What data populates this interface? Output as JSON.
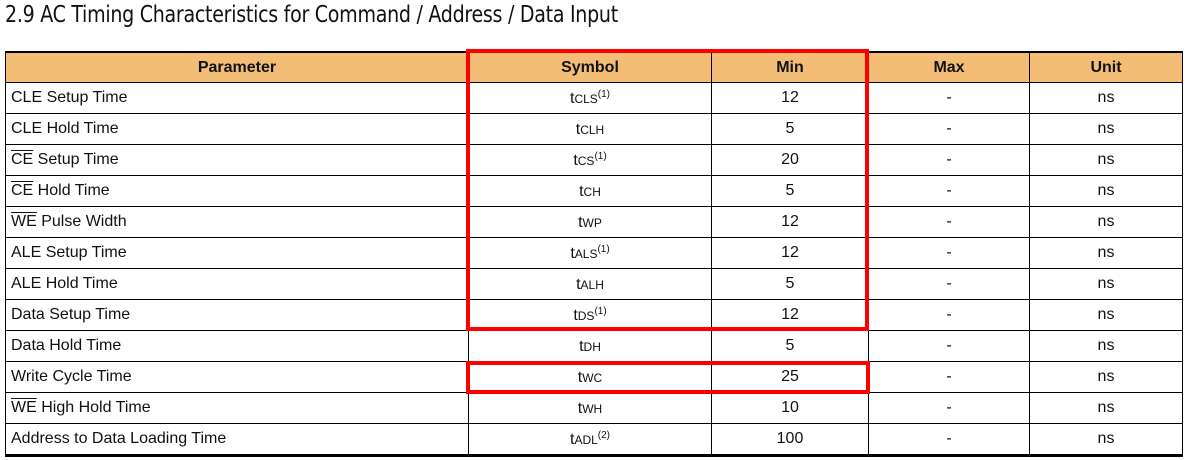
{
  "title": "2.9 AC Timing Characteristics for Command / Address / Data Input",
  "headers": [
    "Parameter",
    "Symbol",
    "Min",
    "Max",
    "Unit"
  ],
  "rows": [
    {
      "ol": "",
      "param": "CLE Setup Time",
      "t": "t",
      "sub": "CLS",
      "sup": "(1)",
      "min": "12",
      "max": "-",
      "unit": "ns"
    },
    {
      "ol": "",
      "param": "CLE Hold Time",
      "t": "t",
      "sub": "CLH",
      "sup": "",
      "min": "5",
      "max": "-",
      "unit": "ns"
    },
    {
      "ol": "CE",
      "param": " Setup Time",
      "t": "t",
      "sub": "CS",
      "sup": "(1)",
      "min": "20",
      "max": "-",
      "unit": "ns"
    },
    {
      "ol": "CE",
      "param": " Hold Time",
      "t": "t",
      "sub": "CH",
      "sup": "",
      "min": "5",
      "max": "-",
      "unit": "ns"
    },
    {
      "ol": "WE",
      "param": " Pulse Width",
      "t": "t",
      "sub": "WP",
      "sup": "",
      "min": "12",
      "max": "-",
      "unit": "ns"
    },
    {
      "ol": "",
      "param": "ALE Setup Time",
      "t": "t",
      "sub": "ALS",
      "sup": "(1)",
      "min": "12",
      "max": "-",
      "unit": "ns"
    },
    {
      "ol": "",
      "param": "ALE Hold Time",
      "t": "t",
      "sub": "ALH",
      "sup": "",
      "min": "5",
      "max": "-",
      "unit": "ns"
    },
    {
      "ol": "",
      "param": "Data Setup Time",
      "t": "t",
      "sub": "DS",
      "sup": "(1)",
      "min": "12",
      "max": "-",
      "unit": "ns"
    },
    {
      "ol": "",
      "param": "Data Hold Time",
      "t": "t",
      "sub": "DH",
      "sup": "",
      "min": "5",
      "max": "-",
      "unit": "ns"
    },
    {
      "ol": "",
      "param": "Write Cycle Time",
      "t": "t",
      "sub": "WC",
      "sup": "",
      "min": "25",
      "max": "-",
      "unit": "ns"
    },
    {
      "ol": "WE",
      "param": " High Hold Time",
      "t": "t",
      "sub": "WH",
      "sup": "",
      "min": "10",
      "max": "-",
      "unit": "ns"
    },
    {
      "ol": "",
      "param": "Address to Data Loading Time",
      "t": "t",
      "sub": "ADL",
      "sup": "(2)",
      "min": "100",
      "max": "-",
      "unit": "ns"
    }
  ],
  "highlight_color": "#ff0000"
}
